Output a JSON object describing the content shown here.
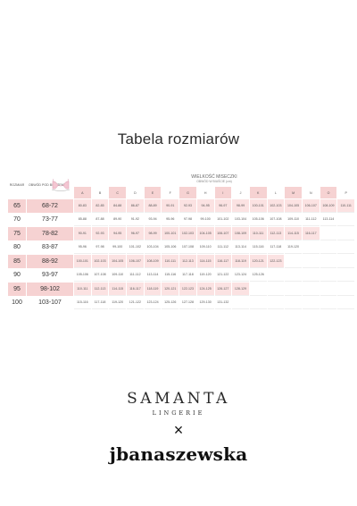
{
  "title": "Tabela rozmiarów",
  "header": {
    "size_label": "ROZMIAR",
    "underbust_label": "OBWÓD POD BIUSTEM",
    "cup_title": "WIELKOŚĆ MISECZKI",
    "cup_subtitle": "OBWÓD W BIUŚCIE (cm)"
  },
  "cups": [
    {
      "letter": "A",
      "pink": true
    },
    {
      "letter": "B",
      "pink": false
    },
    {
      "letter": "C",
      "pink": true
    },
    {
      "letter": "D",
      "pink": false
    },
    {
      "letter": "E",
      "pink": true
    },
    {
      "letter": "F",
      "pink": false
    },
    {
      "letter": "G",
      "pink": true
    },
    {
      "letter": "H",
      "pink": false
    },
    {
      "letter": "I",
      "pink": true
    },
    {
      "letter": "J",
      "pink": false
    },
    {
      "letter": "K",
      "pink": true
    },
    {
      "letter": "L",
      "pink": false
    },
    {
      "letter": "M",
      "pink": true
    },
    {
      "letter": "N",
      "pink": false
    },
    {
      "letter": "O",
      "pink": true
    },
    {
      "letter": "P",
      "pink": false
    }
  ],
  "rows": [
    {
      "band": "65",
      "under": "68-72",
      "pink": true,
      "cells": [
        "80-83",
        "82-85",
        "84-88",
        "86-87",
        "88-89",
        "90-91",
        "92-93",
        "94-95",
        "96-97",
        "98-99",
        "100-101",
        "102-103",
        "104-105",
        "106-107",
        "108-109",
        "110-111"
      ]
    },
    {
      "band": "70",
      "under": "73-77",
      "pink": false,
      "cells": [
        "85-88",
        "87-88",
        "89-90",
        "91-92",
        "93-94",
        "95-96",
        "97-98",
        "99-100",
        "101-102",
        "103-104",
        "105-106",
        "107-108",
        "109-110",
        "111-112",
        "113-114",
        ""
      ]
    },
    {
      "band": "75",
      "under": "78-82",
      "pink": true,
      "cells": [
        "90-91",
        "92-93",
        "94-95",
        "96-97",
        "98-99",
        "100-101",
        "102-103",
        "104-105",
        "106-107",
        "108-109",
        "110-111",
        "112-113",
        "114-115",
        "116-117",
        "",
        ""
      ]
    },
    {
      "band": "80",
      "under": "83-87",
      "pink": false,
      "cells": [
        "95-96",
        "97-98",
        "99-100",
        "101-102",
        "103-104",
        "105-106",
        "107-108",
        "109-110",
        "111-112",
        "113-114",
        "115-116",
        "117-118",
        "119-120",
        "",
        "",
        ""
      ]
    },
    {
      "band": "85",
      "under": "88-92",
      "pink": true,
      "cells": [
        "100-101",
        "102-103",
        "104-105",
        "106-107",
        "108-109",
        "110-111",
        "112-113",
        "114-115",
        "116-117",
        "118-119",
        "120-121",
        "122-123",
        "",
        "",
        "",
        ""
      ]
    },
    {
      "band": "90",
      "under": "93-97",
      "pink": false,
      "cells": [
        "105-106",
        "107-108",
        "109-110",
        "111-112",
        "113-114",
        "115-116",
        "117-118",
        "119-120",
        "121-122",
        "123-124",
        "125-126",
        "",
        "",
        "",
        "",
        ""
      ]
    },
    {
      "band": "95",
      "under": "98-102",
      "pink": true,
      "cells": [
        "110-111",
        "112-113",
        "114-115",
        "116-117",
        "118-119",
        "120-121",
        "122-123",
        "124-125",
        "126-127",
        "128-129",
        "",
        "",
        "",
        "",
        "",
        ""
      ]
    },
    {
      "band": "100",
      "under": "103-107",
      "pink": false,
      "cells": [
        "115-116",
        "117-118",
        "119-120",
        "121-122",
        "123-124",
        "125-126",
        "127-128",
        "129-130",
        "131-132",
        "",
        "",
        "",
        "",
        "",
        "",
        ""
      ]
    }
  ],
  "brand": {
    "samanta": "SAMANTA",
    "lingerie": "LINGERIE",
    "times": "×",
    "collab": "jbanaszewska"
  },
  "colors": {
    "pink": "#f6d2d2",
    "pink_light": "#fbe2e2"
  }
}
